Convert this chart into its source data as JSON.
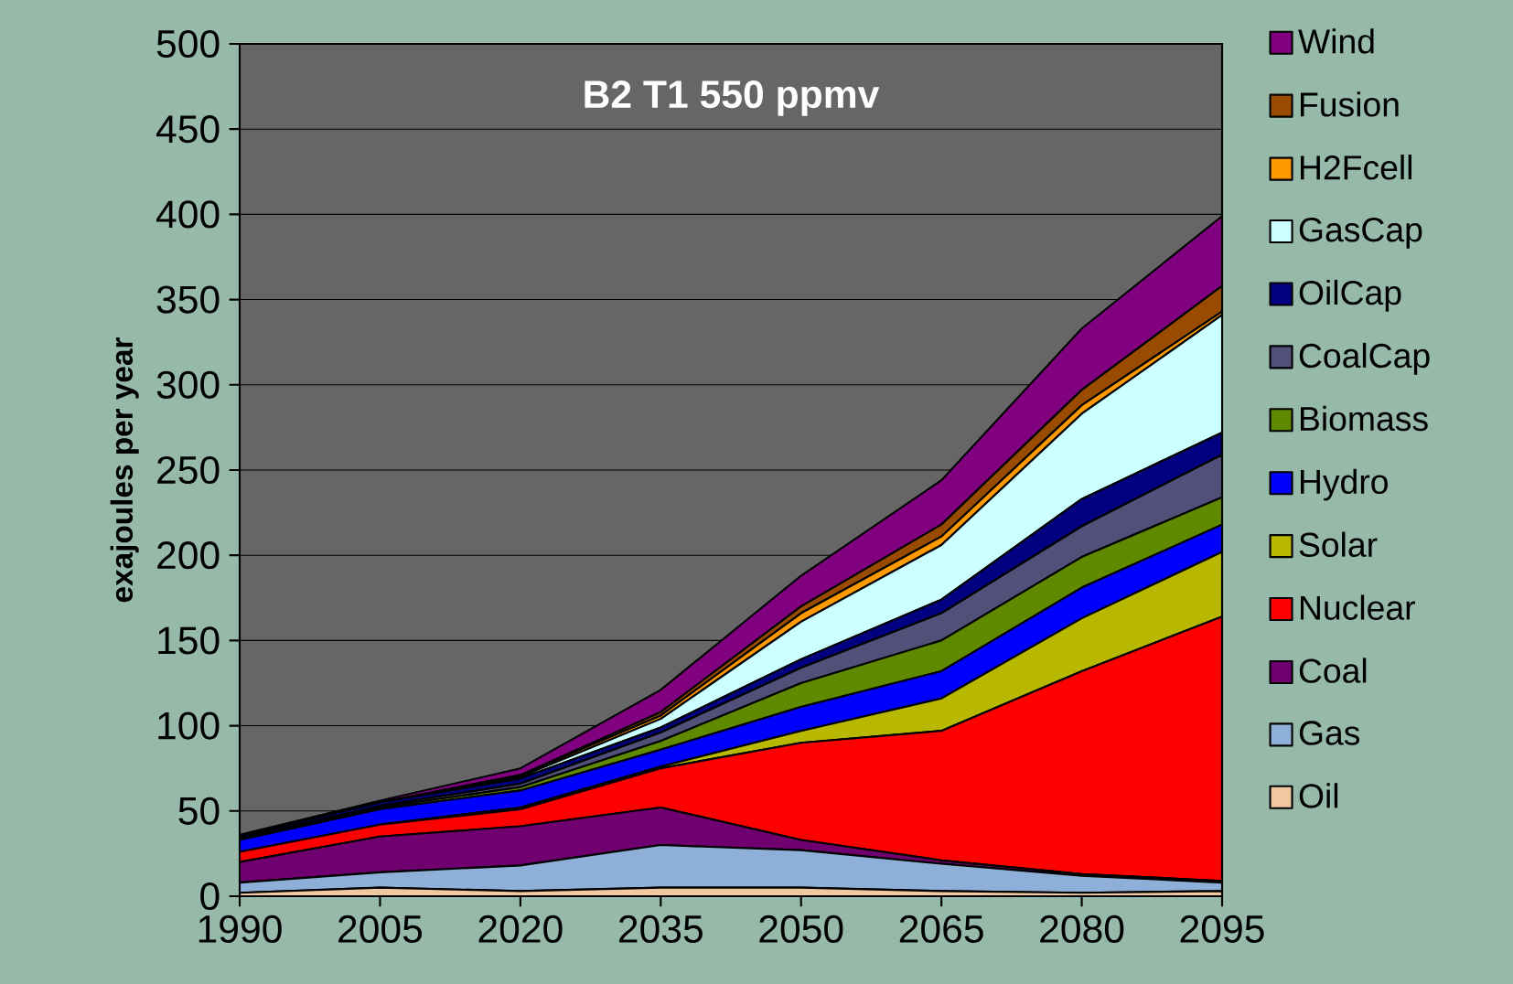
{
  "chart_data": {
    "type": "area",
    "stacked": true,
    "title": "B2 T1 550 ppmv",
    "ylabel": "exajoules per year",
    "x": [
      1990,
      2005,
      2020,
      2035,
      2050,
      2065,
      2080,
      2095
    ],
    "xlim": [
      1990,
      2095
    ],
    "xticks": [
      1990,
      2005,
      2020,
      2035,
      2050,
      2065,
      2080,
      2095
    ],
    "ylim": [
      0,
      500
    ],
    "yticks": [
      0,
      50,
      100,
      150,
      200,
      250,
      300,
      350,
      400,
      450,
      500
    ],
    "grid": "y",
    "legend": "right",
    "series": [
      {
        "name": "Oil",
        "color": "#f0c8a0",
        "values": [
          2,
          5,
          3,
          5,
          5,
          3,
          2,
          3
        ]
      },
      {
        "name": "Gas",
        "color": "#8eb0d8",
        "values": [
          6,
          9,
          15,
          25,
          22,
          16,
          10,
          5
        ]
      },
      {
        "name": "Coal",
        "color": "#700070",
        "values": [
          12,
          21,
          23,
          22,
          6,
          2,
          1,
          1
        ]
      },
      {
        "name": "Nuclear",
        "color": "#ff0000",
        "values": [
          6,
          7,
          10,
          23,
          57,
          76,
          119,
          155
        ]
      },
      {
        "name": "Solar",
        "color": "#b8b800",
        "values": [
          0,
          0,
          1,
          1,
          7,
          19,
          31,
          38
        ]
      },
      {
        "name": "Hydro",
        "color": "#0000ff",
        "values": [
          7,
          9,
          10,
          10,
          14,
          16,
          18,
          16
        ]
      },
      {
        "name": "Biomass",
        "color": "#5f8a00",
        "values": [
          0,
          1,
          2,
          5,
          14,
          18,
          18,
          16
        ]
      },
      {
        "name": "CoalCap",
        "color": "#505078",
        "values": [
          1,
          1,
          2,
          5,
          9,
          16,
          18,
          25
        ]
      },
      {
        "name": "OilCap",
        "color": "#000080",
        "values": [
          1,
          2,
          3,
          3,
          5,
          8,
          16,
          13
        ]
      },
      {
        "name": "GasCap",
        "color": "#ccffff",
        "values": [
          0,
          0,
          1,
          5,
          22,
          32,
          50,
          69
        ]
      },
      {
        "name": "H2Fcell",
        "color": "#ff9900",
        "values": [
          0,
          0,
          1,
          2,
          5,
          5,
          5,
          2
        ]
      },
      {
        "name": "Fusion",
        "color": "#994c00",
        "values": [
          0,
          0,
          0,
          2,
          4,
          7,
          9,
          15
        ]
      },
      {
        "name": "Wind",
        "color": "#800080",
        "values": [
          1,
          1,
          4,
          13,
          18,
          26,
          36,
          41
        ]
      }
    ]
  }
}
